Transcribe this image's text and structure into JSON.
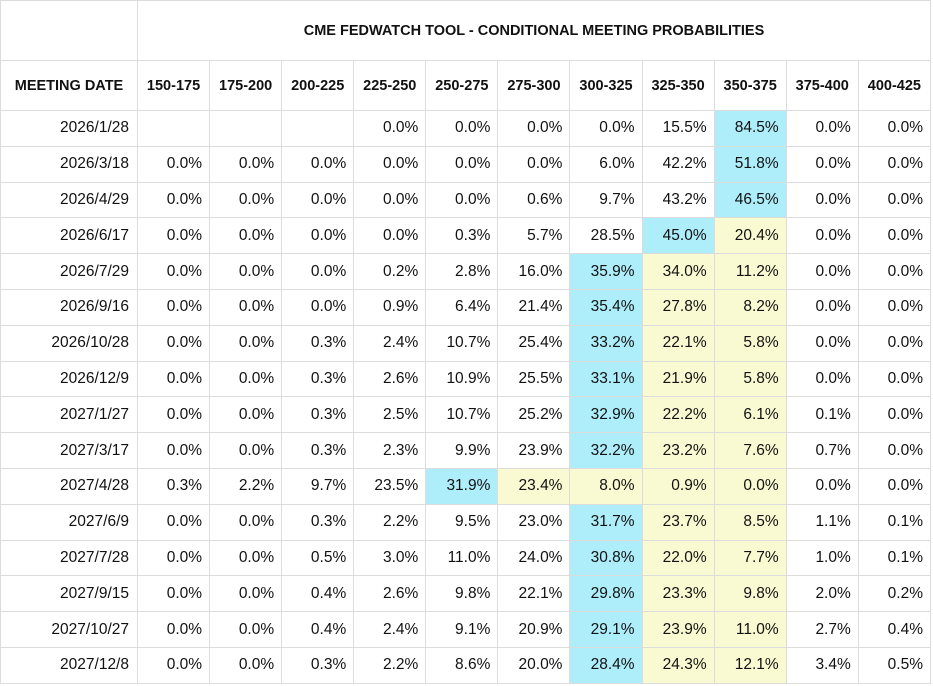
{
  "table": {
    "title": "CME FEDWATCH TOOL - CONDITIONAL MEETING PROBABILITIES",
    "columns": [
      "MEETING DATE",
      "150-175",
      "175-200",
      "200-225",
      "225-250",
      "250-275",
      "275-300",
      "300-325",
      "325-350",
      "350-375",
      "375-400",
      "400-425"
    ],
    "highlight_colors": {
      "blue": "#aeeefa",
      "yellow": "#fafad2"
    },
    "rows": [
      {
        "date": "2026/1/28",
        "values": [
          null,
          null,
          null,
          "0.0%",
          "0.0%",
          "0.0%",
          "0.0%",
          "15.5%",
          "84.5%",
          "0.0%",
          "0.0%"
        ],
        "blue": [
          8
        ],
        "yellow": []
      },
      {
        "date": "2026/3/18",
        "values": [
          "0.0%",
          "0.0%",
          "0.0%",
          "0.0%",
          "0.0%",
          "0.0%",
          "6.0%",
          "42.2%",
          "51.8%",
          "0.0%",
          "0.0%"
        ],
        "blue": [
          8
        ],
        "yellow": []
      },
      {
        "date": "2026/4/29",
        "values": [
          "0.0%",
          "0.0%",
          "0.0%",
          "0.0%",
          "0.0%",
          "0.6%",
          "9.7%",
          "43.2%",
          "46.5%",
          "0.0%",
          "0.0%"
        ],
        "blue": [
          8
        ],
        "yellow": []
      },
      {
        "date": "2026/6/17",
        "values": [
          "0.0%",
          "0.0%",
          "0.0%",
          "0.0%",
          "0.3%",
          "5.7%",
          "28.5%",
          "45.0%",
          "20.4%",
          "0.0%",
          "0.0%"
        ],
        "blue": [
          7
        ],
        "yellow": [
          8
        ]
      },
      {
        "date": "2026/7/29",
        "values": [
          "0.0%",
          "0.0%",
          "0.0%",
          "0.2%",
          "2.8%",
          "16.0%",
          "35.9%",
          "34.0%",
          "11.2%",
          "0.0%",
          "0.0%"
        ],
        "blue": [
          6
        ],
        "yellow": [
          7,
          8
        ]
      },
      {
        "date": "2026/9/16",
        "values": [
          "0.0%",
          "0.0%",
          "0.0%",
          "0.9%",
          "6.4%",
          "21.4%",
          "35.4%",
          "27.8%",
          "8.2%",
          "0.0%",
          "0.0%"
        ],
        "blue": [
          6
        ],
        "yellow": [
          7,
          8
        ]
      },
      {
        "date": "2026/10/28",
        "values": [
          "0.0%",
          "0.0%",
          "0.3%",
          "2.4%",
          "10.7%",
          "25.4%",
          "33.2%",
          "22.1%",
          "5.8%",
          "0.0%",
          "0.0%"
        ],
        "blue": [
          6
        ],
        "yellow": [
          7,
          8
        ]
      },
      {
        "date": "2026/12/9",
        "values": [
          "0.0%",
          "0.0%",
          "0.3%",
          "2.6%",
          "10.9%",
          "25.5%",
          "33.1%",
          "21.9%",
          "5.8%",
          "0.0%",
          "0.0%"
        ],
        "blue": [
          6
        ],
        "yellow": [
          7,
          8
        ]
      },
      {
        "date": "2027/1/27",
        "values": [
          "0.0%",
          "0.0%",
          "0.3%",
          "2.5%",
          "10.7%",
          "25.2%",
          "32.9%",
          "22.2%",
          "6.1%",
          "0.1%",
          "0.0%"
        ],
        "blue": [
          6
        ],
        "yellow": [
          7,
          8
        ]
      },
      {
        "date": "2027/3/17",
        "values": [
          "0.0%",
          "0.0%",
          "0.3%",
          "2.3%",
          "9.9%",
          "23.9%",
          "32.2%",
          "23.2%",
          "7.6%",
          "0.7%",
          "0.0%"
        ],
        "blue": [
          6
        ],
        "yellow": [
          7,
          8
        ]
      },
      {
        "date": "2027/4/28",
        "values": [
          "0.3%",
          "2.2%",
          "9.7%",
          "23.5%",
          "31.9%",
          "23.4%",
          "8.0%",
          "0.9%",
          "0.0%",
          "0.0%",
          "0.0%"
        ],
        "blue": [
          4
        ],
        "yellow": [
          5,
          6,
          7,
          8
        ]
      },
      {
        "date": "2027/6/9",
        "values": [
          "0.0%",
          "0.0%",
          "0.3%",
          "2.2%",
          "9.5%",
          "23.0%",
          "31.7%",
          "23.7%",
          "8.5%",
          "1.1%",
          "0.1%"
        ],
        "blue": [
          6
        ],
        "yellow": [
          7,
          8
        ]
      },
      {
        "date": "2027/7/28",
        "values": [
          "0.0%",
          "0.0%",
          "0.5%",
          "3.0%",
          "11.0%",
          "24.0%",
          "30.8%",
          "22.0%",
          "7.7%",
          "1.0%",
          "0.1%"
        ],
        "blue": [
          6
        ],
        "yellow": [
          7,
          8
        ]
      },
      {
        "date": "2027/9/15",
        "values": [
          "0.0%",
          "0.0%",
          "0.4%",
          "2.6%",
          "9.8%",
          "22.1%",
          "29.8%",
          "23.3%",
          "9.8%",
          "2.0%",
          "0.2%"
        ],
        "blue": [
          6
        ],
        "yellow": [
          7,
          8
        ]
      },
      {
        "date": "2027/10/27",
        "values": [
          "0.0%",
          "0.0%",
          "0.4%",
          "2.4%",
          "9.1%",
          "20.9%",
          "29.1%",
          "23.9%",
          "11.0%",
          "2.7%",
          "0.4%"
        ],
        "blue": [
          6
        ],
        "yellow": [
          7,
          8
        ]
      },
      {
        "date": "2027/12/8",
        "values": [
          "0.0%",
          "0.0%",
          "0.3%",
          "2.2%",
          "8.6%",
          "20.0%",
          "28.4%",
          "24.3%",
          "12.1%",
          "3.4%",
          "0.5%"
        ],
        "blue": [
          6
        ],
        "yellow": [
          7,
          8
        ]
      }
    ]
  }
}
